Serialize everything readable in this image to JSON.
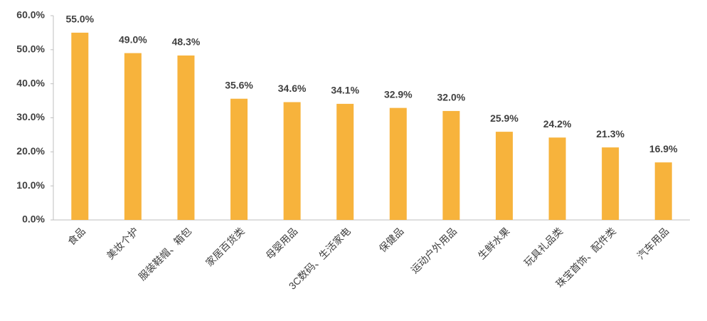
{
  "chart_data": {
    "type": "bar",
    "categories": [
      "食品",
      "美妆个护",
      "服装鞋帽、箱包",
      "家居百货类",
      "母婴用品",
      "3C数码、生活家电",
      "保健品",
      "运动户外用品",
      "生鲜水果",
      "玩具礼品类",
      "珠宝首饰、配件类",
      "汽车用品"
    ],
    "values": [
      55.0,
      49.0,
      48.3,
      35.6,
      34.6,
      34.1,
      32.9,
      32.0,
      25.9,
      24.2,
      21.3,
      16.9
    ],
    "value_labels": [
      "55.0%",
      "49.0%",
      "48.3%",
      "35.6%",
      "34.6%",
      "34.1%",
      "32.9%",
      "32.0%",
      "25.9%",
      "24.2%",
      "21.3%",
      "16.9%"
    ],
    "color": "#f7b33c",
    "ylim": [
      0,
      60
    ],
    "yticks": [
      {
        "value": 0,
        "label": "0.0%"
      },
      {
        "value": 10,
        "label": "10.0%"
      },
      {
        "value": 20,
        "label": "20.0%"
      },
      {
        "value": 30,
        "label": "30.0%"
      },
      {
        "value": 40,
        "label": "40.0%"
      },
      {
        "value": 50,
        "label": "50.0%"
      },
      {
        "value": 60,
        "label": "60.0%"
      }
    ],
    "grid": false
  }
}
